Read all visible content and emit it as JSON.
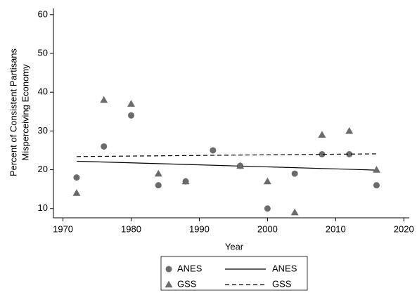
{
  "chart_data": {
    "type": "scatter",
    "xlabel": "Year",
    "ylabel": [
      "Percent of Consistent Partisans",
      "Misperceiving Economy"
    ],
    "xlim": [
      1968.6,
      2020.8
    ],
    "xticks": [
      1970,
      1980,
      1990,
      2000,
      2010,
      2020
    ],
    "ylim": [
      7.6,
      61.6
    ],
    "yticks": [
      10,
      20,
      30,
      40,
      50,
      60
    ],
    "grid": false,
    "legend": "bottom",
    "series": [
      {
        "name": "ANES",
        "type": "scatter",
        "marker": "circle",
        "color": "#6b6b6b",
        "x": [
          1972,
          1976,
          1980,
          1984,
          1988,
          1992,
          1996,
          2000,
          2004,
          2008,
          2012,
          2016
        ],
        "values": [
          18,
          26,
          34,
          16,
          17,
          25,
          21,
          10,
          19,
          24,
          24,
          16
        ]
      },
      {
        "name": "ANES",
        "type": "line",
        "style": "solid",
        "color": "#000000",
        "x": [
          1972,
          2016
        ],
        "values": [
          22.2,
          19.9
        ]
      },
      {
        "name": "GSS",
        "type": "scatter",
        "marker": "triangle",
        "color": "#6b6b6b",
        "x": [
          1972,
          1976,
          1980,
          1984,
          1988,
          1996,
          2000,
          2004,
          2008,
          2012,
          2016
        ],
        "values": [
          14,
          38,
          37,
          19,
          17,
          21,
          17,
          9,
          29,
          30,
          20
        ]
      },
      {
        "name": "GSS",
        "type": "line",
        "style": "dashed",
        "color": "#000000",
        "x": [
          1972,
          2016
        ],
        "values": [
          23.4,
          24.1
        ]
      }
    ]
  }
}
